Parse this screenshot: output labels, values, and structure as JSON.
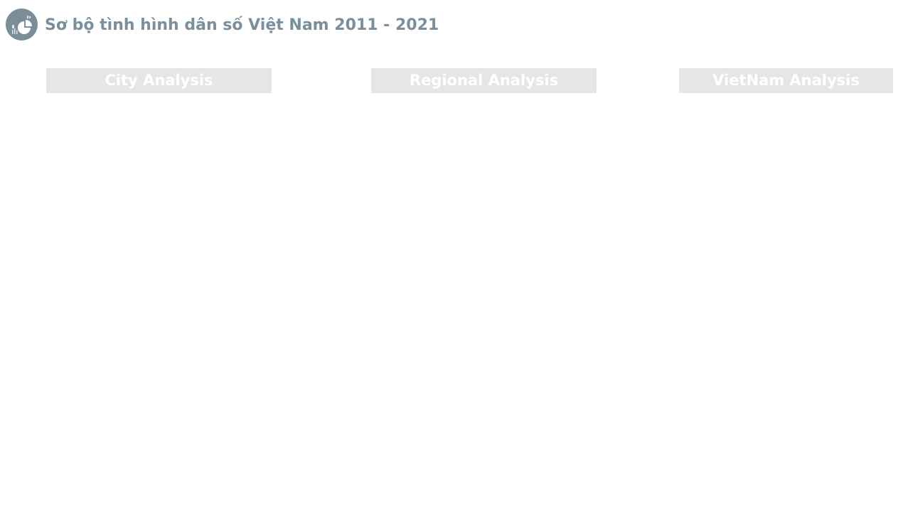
{
  "header": {
    "title": "Sơ bộ tình hình dân số Việt Nam 2011 - 2021",
    "logo_icon": "chart-pie-icon"
  },
  "nav": {
    "items": [
      {
        "label": "City Analysis"
      },
      {
        "label": "Regional Analysis"
      },
      {
        "label": "VietNam Analysis"
      }
    ]
  },
  "colors": {
    "accent": "#798e99",
    "title_text": "#7a8f9b",
    "button_bg": "#e6e6e6",
    "button_text": "#ffffff"
  }
}
